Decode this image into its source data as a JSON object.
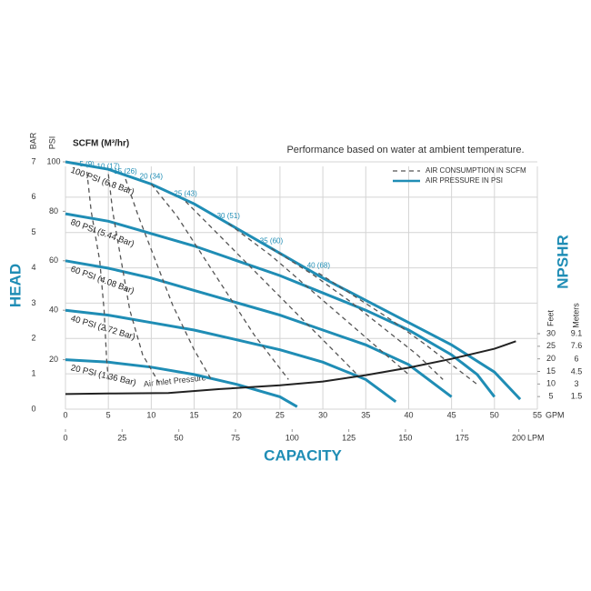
{
  "chart_data": {
    "type": "line",
    "annotation": "Performance based on water at ambient temperature.",
    "scfm_label": "SCFM (M³/hr)",
    "xlabel": "CAPACITY",
    "ylabel": "HEAD",
    "y3label": "NPSHR",
    "x_unit": "GPM",
    "x2_unit": "LPM",
    "y_unit": "PSI",
    "y2_unit": "BAR",
    "y3_unit": "Feet",
    "y4_unit": "Meters",
    "note": "Air Inlet Pressure",
    "xlim": [
      0,
      55
    ],
    "xticks": [
      0,
      5,
      10,
      15,
      20,
      25,
      30,
      35,
      40,
      45,
      50,
      55
    ],
    "x2lim": [
      0,
      208.2
    ],
    "x2ticks": [
      0,
      25,
      50,
      75,
      100,
      125,
      150,
      175,
      200
    ],
    "ylim": [
      0,
      100
    ],
    "yticks": [
      20,
      40,
      60,
      80,
      100
    ],
    "y2lim": [
      0,
      7
    ],
    "y2ticks": [
      0,
      1,
      2,
      3,
      4,
      5,
      6,
      7
    ],
    "y3lim": [
      0,
      30
    ],
    "y3ticks": [
      5,
      10,
      15,
      20,
      25,
      30
    ],
    "y4lim": [
      0,
      9.1
    ],
    "y4ticks": [
      1.5,
      3,
      4.5,
      6,
      7.6,
      9.1
    ],
    "grid": true,
    "legend_position": "upper right",
    "legend": [
      {
        "name": "AIR CONSUMPTION IN SCFM",
        "style": "dashed",
        "color": "#555555"
      },
      {
        "name": "AIR PRESSURE IN PSI",
        "style": "solid",
        "color": "#1f8db5"
      }
    ],
    "series": [
      {
        "name": "100 PSI (6.8 Bar)",
        "color": "#1f8db5",
        "style": "solid",
        "x": [
          0,
          5,
          10,
          15,
          20,
          25,
          30,
          35,
          40,
          45,
          50,
          53
        ],
        "values": [
          100,
          97,
          91,
          83,
          73,
          63,
          53,
          44,
          35,
          26,
          15,
          4
        ]
      },
      {
        "name": "80 PSI (5.44 Bar)",
        "color": "#1f8db5",
        "style": "solid",
        "x": [
          0,
          5,
          10,
          15,
          20,
          25,
          30,
          35,
          40,
          45,
          48,
          50
        ],
        "values": [
          79,
          76,
          71,
          66,
          60,
          54,
          47,
          40,
          32,
          22,
          14,
          5
        ]
      },
      {
        "name": "60 PSI (4.08 Bar)",
        "color": "#1f8db5",
        "style": "solid",
        "x": [
          0,
          5,
          10,
          15,
          20,
          25,
          30,
          35,
          40,
          45
        ],
        "values": [
          60,
          57,
          53,
          48,
          43,
          38,
          32,
          26,
          18,
          5
        ]
      },
      {
        "name": "40 PSI (2.72 Bar)",
        "color": "#1f8db5",
        "style": "solid",
        "x": [
          0,
          5,
          10,
          15,
          20,
          25,
          30,
          35,
          38.5
        ],
        "values": [
          40,
          38,
          35,
          32,
          28,
          24,
          19,
          12,
          3
        ]
      },
      {
        "name": "20 PSI (1.36 Bar)",
        "color": "#1f8db5",
        "style": "solid",
        "x": [
          0,
          5,
          10,
          15,
          20,
          25,
          27
        ],
        "values": [
          20,
          19,
          17,
          14,
          10,
          5,
          1
        ]
      },
      {
        "name": "5 (9)",
        "color": "#555555",
        "style": "dashed",
        "x": [
          2.5,
          3,
          4,
          4.5,
          4.8,
          5
        ],
        "values": [
          96,
          80,
          60,
          40,
          20,
          12
        ]
      },
      {
        "name": "10 (17)",
        "color": "#555555",
        "style": "dashed",
        "x": [
          5,
          5.5,
          6.5,
          7.5,
          9,
          11
        ],
        "values": [
          95,
          80,
          60,
          40,
          22,
          10
        ]
      },
      {
        "name": "15 (26)",
        "color": "#555555",
        "style": "dashed",
        "x": [
          7,
          8.5,
          10.5,
          12.5,
          15,
          17
        ],
        "values": [
          93,
          78,
          60,
          42,
          24,
          12
        ]
      },
      {
        "name": "20 (34)",
        "color": "#555555",
        "style": "dashed",
        "x": [
          10,
          13,
          16,
          19,
          22,
          26
        ],
        "values": [
          91,
          78,
          62,
          46,
          30,
          12
        ]
      },
      {
        "name": "25 (43)",
        "color": "#555555",
        "style": "dashed",
        "x": [
          14,
          18,
          22,
          26,
          30,
          34
        ],
        "values": [
          84,
          70,
          56,
          42,
          28,
          14
        ]
      },
      {
        "name": "30 (51)",
        "color": "#555555",
        "style": "dashed",
        "x": [
          19,
          24,
          28,
          32,
          36,
          40
        ],
        "values": [
          75,
          62,
          50,
          38,
          26,
          14
        ]
      },
      {
        "name": "35 (60)",
        "color": "#555555",
        "style": "dashed",
        "x": [
          24,
          29,
          33,
          37,
          41,
          44
        ],
        "values": [
          65,
          54,
          44,
          33,
          22,
          12
        ]
      },
      {
        "name": "40 (68)",
        "color": "#555555",
        "style": "dashed",
        "x": [
          29.5,
          34,
          38,
          42,
          45,
          48
        ],
        "values": [
          55,
          45,
          36,
          26,
          18,
          10
        ]
      },
      {
        "color": "#222222",
        "style": "solid",
        "axis": "y3",
        "x": [
          0,
          5,
          12,
          18,
          25,
          30,
          35,
          40,
          45,
          50,
          52.5
        ],
        "values": [
          6,
          6.2,
          6.4,
          8,
          9.5,
          11,
          13.5,
          16.5,
          20,
          24,
          27
        ]
      }
    ]
  }
}
